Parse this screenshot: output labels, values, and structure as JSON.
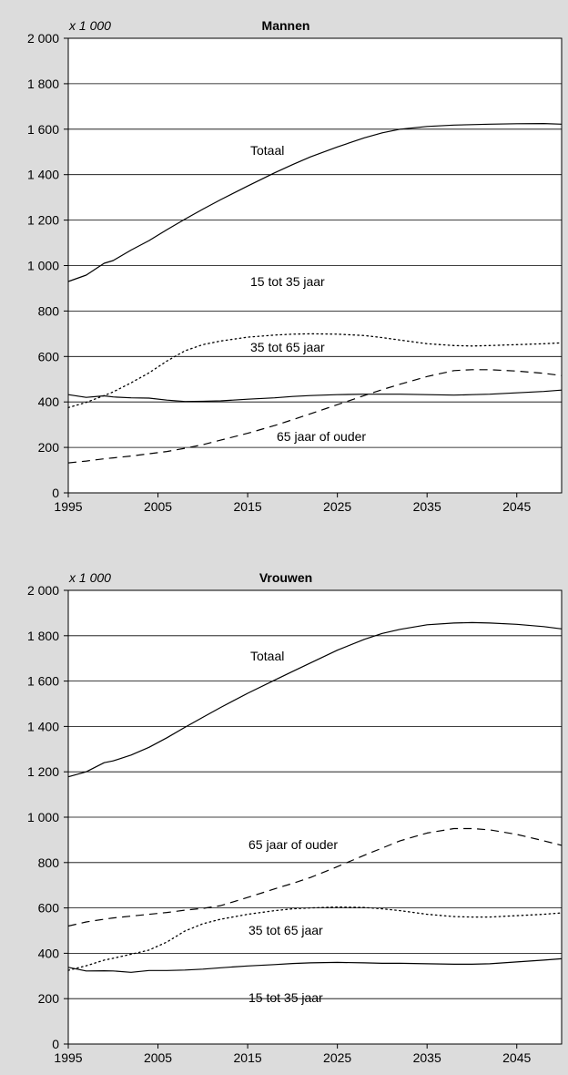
{
  "chart_data": [
    {
      "type": "line",
      "title": "Mannen",
      "unit": "x 1 000",
      "xlim": [
        1995,
        2050
      ],
      "ylim": [
        0,
        2000
      ],
      "x_ticks": [
        "1995",
        "2005",
        "2015",
        "2025",
        "2035",
        "2045"
      ],
      "y_ticks": [
        "0",
        "200",
        "400",
        "600",
        "800",
        "1 000",
        "1 200",
        "1 400",
        "1 600",
        "1 800",
        "2 000"
      ],
      "grid": true,
      "x": [
        1995,
        1997,
        1999,
        2000,
        2002,
        2004,
        2006,
        2008,
        2010,
        2012,
        2015,
        2018,
        2020,
        2022,
        2025,
        2028,
        2030,
        2032,
        2035,
        2038,
        2040,
        2042,
        2045,
        2048,
        2050
      ],
      "series": [
        {
          "name": "Totaal",
          "style": "solid",
          "values": [
            930,
            958,
            1010,
            1022,
            1068,
            1110,
            1158,
            1204,
            1248,
            1290,
            1350,
            1408,
            1444,
            1478,
            1522,
            1562,
            1584,
            1600,
            1612,
            1618,
            1620,
            1622,
            1624,
            1625,
            1622
          ]
        },
        {
          "name": "35 tot 65 jaar",
          "style": "dotted",
          "values": [
            375,
            398,
            428,
            444,
            484,
            528,
            580,
            625,
            652,
            668,
            685,
            694,
            698,
            700,
            698,
            692,
            683,
            672,
            656,
            648,
            646,
            648,
            652,
            656,
            660
          ]
        },
        {
          "name": "15 tot 35 jaar",
          "style": "solid",
          "values": [
            432,
            420,
            427,
            422,
            418,
            417,
            408,
            402,
            403,
            405,
            412,
            418,
            424,
            428,
            432,
            434,
            434,
            434,
            432,
            430,
            432,
            434,
            440,
            446,
            452
          ]
        },
        {
          "name": "65 jaar of ouder",
          "style": "dashed",
          "values": [
            132,
            140,
            150,
            154,
            162,
            172,
            182,
            196,
            212,
            232,
            262,
            296,
            322,
            348,
            388,
            428,
            454,
            478,
            512,
            538,
            542,
            542,
            536,
            526,
            516
          ]
        }
      ]
    },
    {
      "type": "line",
      "title": "Vrouwen",
      "unit": "x 1 000",
      "xlim": [
        1995,
        2050
      ],
      "ylim": [
        0,
        2000
      ],
      "x_ticks": [
        "1995",
        "2005",
        "2015",
        "2025",
        "2035",
        "2045"
      ],
      "y_ticks": [
        "0",
        "200",
        "400",
        "600",
        "800",
        "1 000",
        "1 200",
        "1 400",
        "1 600",
        "1 800",
        "2 000"
      ],
      "grid": true,
      "x": [
        1995,
        1997,
        1999,
        2000,
        2002,
        2004,
        2006,
        2008,
        2010,
        2012,
        2015,
        2018,
        2020,
        2022,
        2025,
        2028,
        2030,
        2032,
        2035,
        2038,
        2040,
        2042,
        2045,
        2048,
        2050
      ],
      "series": [
        {
          "name": "Totaal",
          "style": "solid",
          "values": [
            1178,
            1200,
            1240,
            1248,
            1274,
            1308,
            1350,
            1396,
            1440,
            1484,
            1546,
            1604,
            1642,
            1680,
            1736,
            1784,
            1810,
            1828,
            1848,
            1856,
            1858,
            1856,
            1850,
            1840,
            1830
          ]
        },
        {
          "name": "65 jaar of ouder",
          "style": "dashed",
          "values": [
            520,
            538,
            550,
            556,
            564,
            572,
            580,
            590,
            598,
            610,
            646,
            684,
            708,
            734,
            782,
            832,
            864,
            896,
            930,
            950,
            950,
            944,
            924,
            896,
            876
          ]
        },
        {
          "name": "35 tot 65 jaar",
          "style": "dotted",
          "values": [
            325,
            345,
            370,
            378,
            396,
            414,
            450,
            498,
            530,
            550,
            572,
            588,
            596,
            600,
            604,
            602,
            596,
            588,
            572,
            562,
            560,
            560,
            566,
            572,
            578
          ]
        },
        {
          "name": "15 tot 35 jaar",
          "style": "solid",
          "values": [
            338,
            322,
            323,
            322,
            316,
            324,
            324,
            326,
            330,
            336,
            344,
            350,
            355,
            358,
            360,
            358,
            356,
            356,
            354,
            352,
            352,
            354,
            362,
            370,
            376
          ]
        }
      ]
    }
  ]
}
